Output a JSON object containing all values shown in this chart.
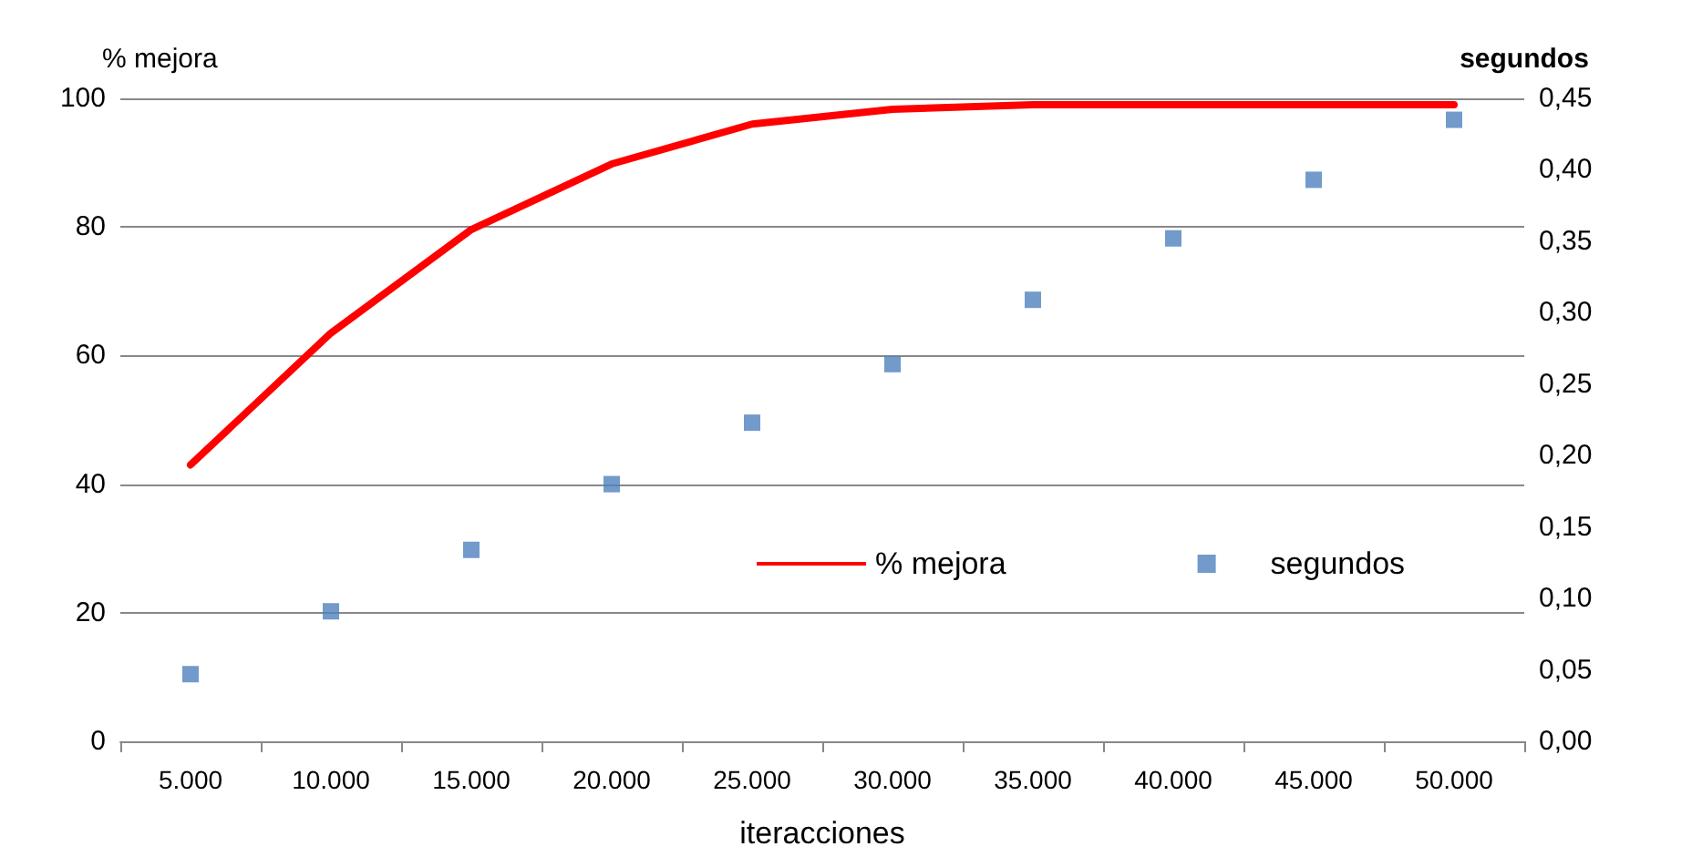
{
  "chart_data": {
    "type": "line",
    "xlabel": "iteracciones",
    "ylabel": "% mejora",
    "y2label": "segundos",
    "categories": [
      "5.000",
      "10.000",
      "15.000",
      "20.000",
      "25.000",
      "30.000",
      "35.000",
      "40.000",
      "45.000",
      "50.000"
    ],
    "series": [
      {
        "name": "% mejora",
        "color": "#ff0000",
        "marker": "none",
        "values": [
          43,
          63.5,
          79.6,
          89.8,
          96,
          98.3,
          99,
          99,
          99,
          99
        ]
      },
      {
        "name": "segundos",
        "type": "scatter",
        "axis": "y2",
        "color": "#4f81bd",
        "marker": "square",
        "values": [
          0.047,
          0.091,
          0.134,
          0.18,
          0.223,
          0.264,
          0.309,
          0.352,
          0.393,
          0.435
        ]
      }
    ],
    "ylim": [
      0,
      100
    ],
    "yticks": [
      0,
      20,
      40,
      60,
      80,
      100
    ],
    "y2lim": [
      0,
      0.45
    ],
    "y2ticks": [
      {
        "value": 0,
        "label": "0,00"
      },
      {
        "value": 0.05,
        "label": "0,05"
      },
      {
        "value": 0.1,
        "label": "0,10"
      },
      {
        "value": 0.15,
        "label": "0,15"
      },
      {
        "value": 0.2,
        "label": "0,20"
      },
      {
        "value": 0.25,
        "label": "0,25"
      },
      {
        "value": 0.3,
        "label": "0,30"
      },
      {
        "value": 0.35,
        "label": "0,35"
      },
      {
        "value": 0.4,
        "label": "0,40"
      },
      {
        "value": 0.45,
        "label": "0,45"
      }
    ],
    "grid": "y",
    "legend": "right"
  }
}
